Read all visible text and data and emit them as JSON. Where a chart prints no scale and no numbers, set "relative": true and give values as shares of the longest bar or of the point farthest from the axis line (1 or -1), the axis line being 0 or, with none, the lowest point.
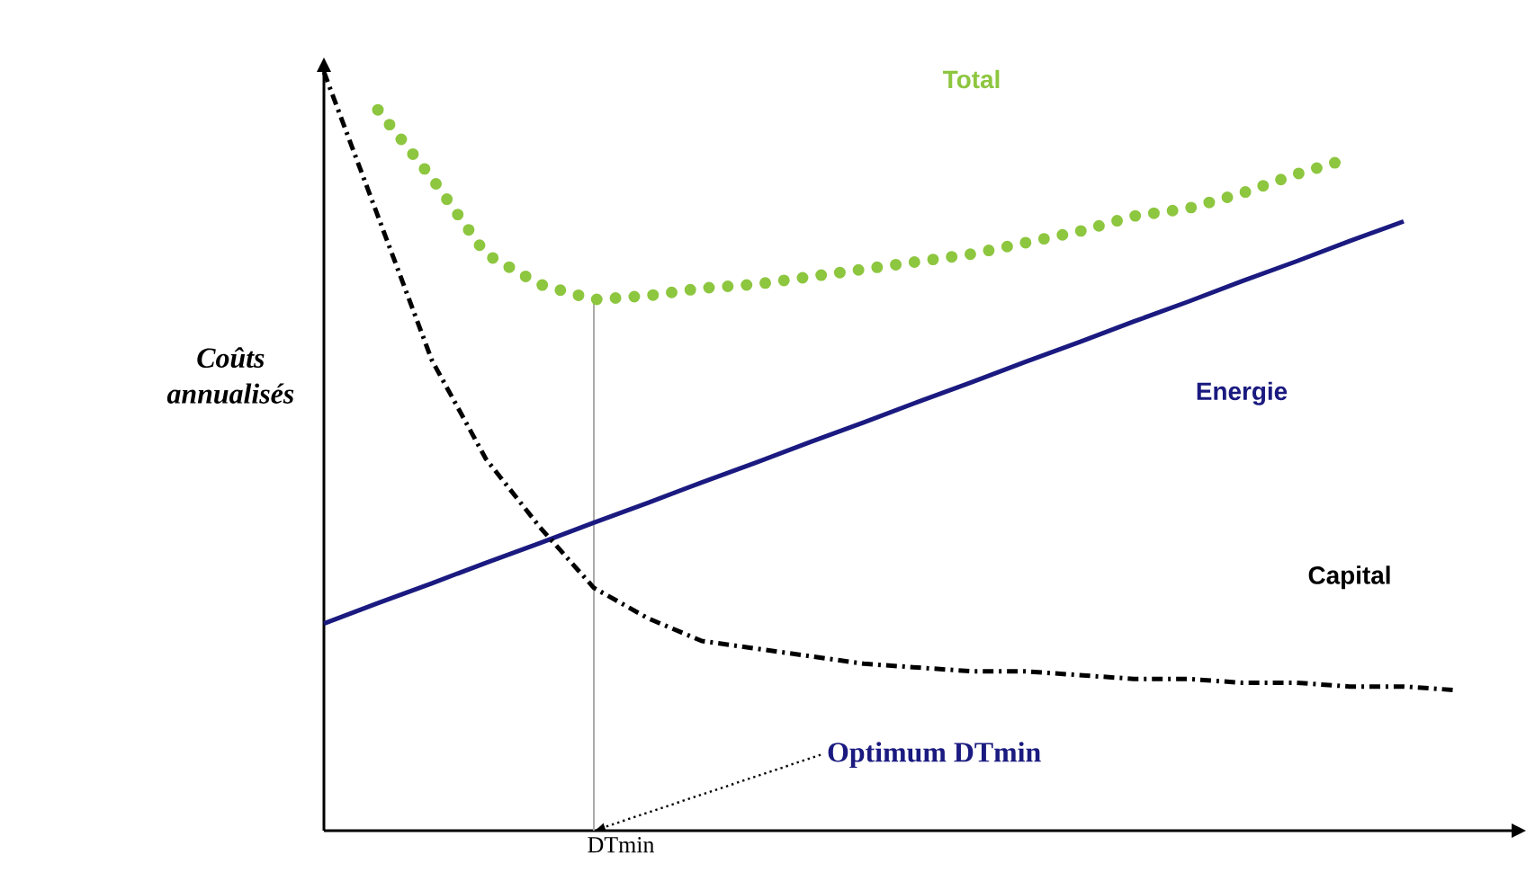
{
  "chart_data": {
    "type": "line",
    "relative": true,
    "xlabel": "DTmin",
    "ylabel": "Coûts annualisés",
    "categories": [
      null,
      null,
      null,
      null,
      null,
      null,
      null,
      null,
      null,
      null,
      null,
      null,
      null,
      null,
      null,
      null,
      null,
      null,
      null,
      null,
      null,
      null
    ],
    "series": [
      {
        "name": "Total",
        "color": "#8dc63f",
        "line_style": "dotted",
        "values": [
          null,
          0.95,
          0.86,
          0.76,
          0.72,
          0.7,
          0.705,
          0.715,
          0.72,
          0.73,
          0.74,
          0.75,
          0.76,
          0.775,
          0.79,
          0.81,
          0.82,
          0.84,
          0.865,
          0.886,
          null,
          null
        ]
      },
      {
        "name": "Energie",
        "color": "#1a1a80",
        "marker": "none",
        "line_style": "solid",
        "values": [
          0.273,
          0.3,
          0.326,
          0.353,
          0.379,
          0.406,
          0.432,
          0.459,
          0.485,
          0.512,
          0.538,
          0.565,
          0.591,
          0.618,
          0.644,
          0.671,
          0.697,
          0.724,
          0.75,
          0.777,
          0.803,
          null
        ]
      },
      {
        "name": "Capital",
        "color": "#000000",
        "marker": "none",
        "line_style": "dashdot",
        "values": [
          1.0,
          0.81,
          0.62,
          0.49,
          0.4,
          0.32,
          0.28,
          0.25,
          0.24,
          0.23,
          0.22,
          0.215,
          0.21,
          0.21,
          0.205,
          0.2,
          0.2,
          0.195,
          0.195,
          0.19,
          0.19,
          0.185
        ]
      }
    ],
    "annotations": [
      "Optimum DTmin"
    ]
  }
}
